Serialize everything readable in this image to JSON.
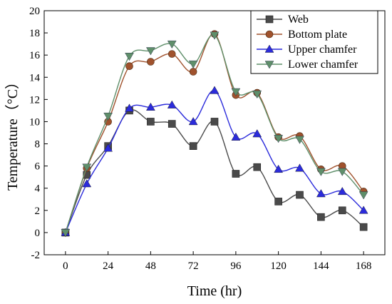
{
  "chart_data": {
    "type": "line",
    "xlabel": "Time (hr)",
    "ylabel": "Temperature（°C）",
    "xlim": [
      -12,
      180
    ],
    "ylim": [
      -2,
      20
    ],
    "xticks": [
      0,
      24,
      48,
      72,
      96,
      120,
      144,
      168
    ],
    "yticks": [
      -2,
      0,
      2,
      4,
      6,
      8,
      10,
      12,
      14,
      16,
      18,
      20
    ],
    "x": [
      0,
      12,
      24,
      36,
      48,
      60,
      72,
      84,
      96,
      108,
      120,
      132,
      144,
      156,
      168
    ],
    "legend_position": "top-right",
    "grid": false,
    "smooth": true,
    "series": [
      {
        "name": "Web",
        "color": "#4a4a4a",
        "marker": "square",
        "values": [
          0,
          5.2,
          7.8,
          11.0,
          10.0,
          9.8,
          7.8,
          10.0,
          5.3,
          5.9,
          2.8,
          3.4,
          1.4,
          2.0,
          0.5
        ]
      },
      {
        "name": "Bottom plate",
        "color": "#a0522d",
        "marker": "circle",
        "values": [
          0,
          5.8,
          10.0,
          15.0,
          15.4,
          16.1,
          14.5,
          17.9,
          12.4,
          12.6,
          8.6,
          8.7,
          5.7,
          6.0,
          3.7
        ]
      },
      {
        "name": "Upper chamfer",
        "color": "#2b2bdb",
        "marker": "triangle-up",
        "values": [
          0,
          4.4,
          7.6,
          11.2,
          11.3,
          11.5,
          10.0,
          12.8,
          8.6,
          8.9,
          5.7,
          5.8,
          3.5,
          3.7,
          2.0
        ]
      },
      {
        "name": "Lower chamfer",
        "color": "#5f8f6a",
        "marker": "triangle-down",
        "values": [
          0,
          5.9,
          10.5,
          15.9,
          16.4,
          17.0,
          15.2,
          17.8,
          12.7,
          12.5,
          8.5,
          8.4,
          5.5,
          5.5,
          3.4
        ]
      }
    ]
  }
}
